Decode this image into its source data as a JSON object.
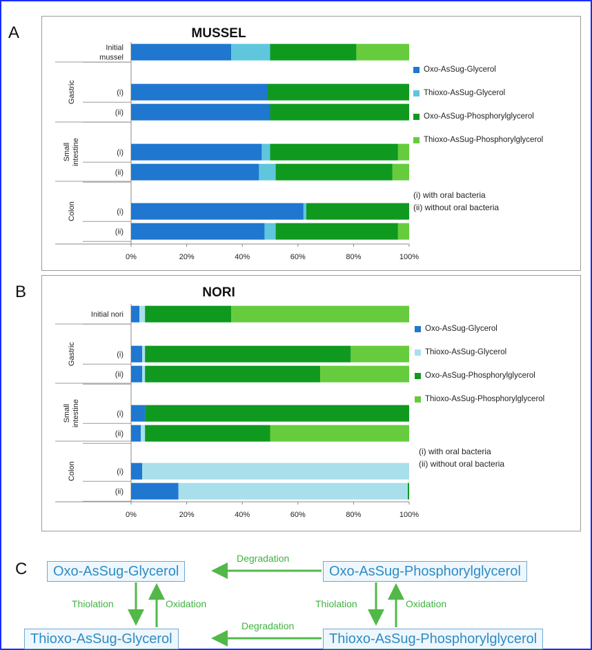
{
  "panel_letters": {
    "a": "A",
    "b": "B",
    "c": "C"
  },
  "colors": {
    "oxo_glycerol": "#1f77cf",
    "thioxo_glycerol_mussel": "#5fc6dd",
    "thioxo_glycerol_nori": "#a9dfeb",
    "oxo_phosphoryl": "#0f9a1f",
    "thioxo_phosphoryl": "#66cc3e"
  },
  "chart_data": [
    {
      "type": "bar",
      "orientation": "horizontal",
      "stacked": true,
      "title": "MUSSEL",
      "categories": [
        "Initial mussel",
        "Gastric (i)",
        "Gastric (ii)",
        "Small intestine (i)",
        "Small intestine (ii)",
        "Colon (i)",
        "Colon (ii)"
      ],
      "row_labels": [
        "Initial\nmussel",
        "(i)",
        "(ii)",
        "(i)",
        "(ii)",
        "(i)",
        "(ii)"
      ],
      "groups": [
        {
          "label": "Gastric",
          "rows": [
            1,
            2
          ]
        },
        {
          "label": "Small\nintestine",
          "rows": [
            3,
            4
          ]
        },
        {
          "label": "Colon",
          "rows": [
            5,
            6
          ]
        }
      ],
      "series": [
        {
          "name": "Oxo-AsSug-Glycerol",
          "values": [
            36,
            49,
            50,
            47,
            46,
            62,
            48
          ]
        },
        {
          "name": "Thioxo-AsSug-Glycerol",
          "values": [
            14,
            0,
            0,
            3,
            6,
            1,
            4
          ]
        },
        {
          "name": "Oxo-AsSug-Phosphorylglycerol",
          "values": [
            31,
            51,
            50,
            46,
            42,
            37,
            44
          ]
        },
        {
          "name": "Thioxo-AsSug-Phosphorylglycerol",
          "values": [
            19,
            0,
            0,
            4,
            6,
            0,
            4
          ]
        }
      ],
      "xlim": [
        0,
        100
      ],
      "xticks": [
        "0%",
        "20%",
        "40%",
        "60%",
        "80%",
        "100%"
      ],
      "legend_position": "right",
      "notes": [
        "(i) with oral bacteria",
        "(ii) without oral bacteria"
      ]
    },
    {
      "type": "bar",
      "orientation": "horizontal",
      "stacked": true,
      "title": "NORI",
      "categories": [
        "Initial nori",
        "Gastric (i)",
        "Gastric (ii)",
        "Small intestine (i)",
        "Small intestine (ii)",
        "Colon (i)",
        "Colon (ii)"
      ],
      "row_labels": [
        "Initial nori",
        "(i)",
        "(ii)",
        "(i)",
        "(ii)",
        "(i)",
        "(ii)"
      ],
      "groups": [
        {
          "label": "Gastric",
          "rows": [
            1,
            2
          ]
        },
        {
          "label": "Small\nintestine",
          "rows": [
            3,
            4
          ]
        },
        {
          "label": "Colon",
          "rows": [
            5,
            6
          ]
        }
      ],
      "series": [
        {
          "name": "Oxo-AsSug-Glycerol",
          "values": [
            3,
            4,
            4,
            5,
            3.5,
            4,
            17
          ]
        },
        {
          "name": "Thioxo-AsSug-Glycerol",
          "values": [
            2,
            1,
            1,
            0,
            1.5,
            96,
            82.5
          ]
        },
        {
          "name": "Oxo-AsSug-Phosphorylglycerol",
          "values": [
            31,
            74,
            63,
            95,
            45,
            0,
            0.5
          ]
        },
        {
          "name": "Thioxo-AsSug-Phosphorylglycerol",
          "values": [
            64,
            21,
            32,
            0,
            50,
            0,
            0
          ]
        }
      ],
      "xlim": [
        0,
        100
      ],
      "xticks": [
        "0%",
        "20%",
        "40%",
        "60%",
        "80%",
        "100%"
      ],
      "legend_position": "right",
      "notes": [
        "(i) with oral bacteria",
        "(ii) without oral bacteria"
      ]
    }
  ],
  "scheme": {
    "oxo_glycerol": "Oxo-AsSug-Glycerol",
    "oxo_phosphoryl": "Oxo-AsSug-Phosphorylglycerol",
    "thioxo_glycerol": "Thioxo-AsSug-Glycerol",
    "thioxo_phosphoryl": "Thioxo-AsSug-Phosphorylglycerol",
    "degradation_top": "Degradation",
    "degradation_bottom": "Degradation",
    "thiolation_left": "Thiolation",
    "oxidation_left": "Oxidation",
    "thiolation_right": "Thiolation",
    "oxidation_right": "Oxidation"
  }
}
